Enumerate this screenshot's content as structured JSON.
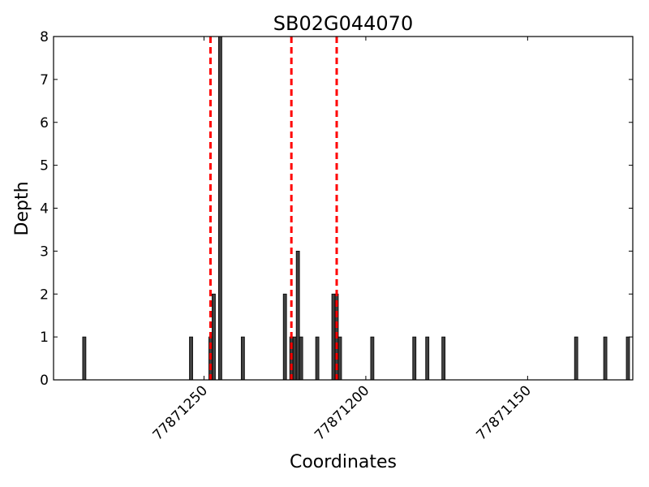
{
  "chart_data": {
    "type": "bar",
    "title": "SB02G044070",
    "xlabel": "Coordinates",
    "ylabel": "Depth",
    "x_reversed": true,
    "xlim": [
      77871296.5,
      77871117.5
    ],
    "ylim": [
      0,
      8
    ],
    "yticks": [
      0,
      1,
      2,
      3,
      4,
      5,
      6,
      7,
      8
    ],
    "xticks": [
      77871250,
      77871200,
      77871150
    ],
    "xtick_labels": [
      "77871250",
      "77871200",
      "77871150"
    ],
    "bar_width": 1,
    "bar_color": "#404040",
    "reference_lines": [
      77871248,
      77871223,
      77871209
    ],
    "reference_line_color": "#ff0000",
    "grid": false,
    "bars": [
      {
        "x": 77871287,
        "y": 1
      },
      {
        "x": 77871254,
        "y": 1
      },
      {
        "x": 77871248,
        "y": 1
      },
      {
        "x": 77871247,
        "y": 2
      },
      {
        "x": 77871245,
        "y": 8
      },
      {
        "x": 77871238,
        "y": 1
      },
      {
        "x": 77871225,
        "y": 2
      },
      {
        "x": 77871223,
        "y": 1
      },
      {
        "x": 77871222,
        "y": 1
      },
      {
        "x": 77871221,
        "y": 3
      },
      {
        "x": 77871220,
        "y": 1
      },
      {
        "x": 77871215,
        "y": 1
      },
      {
        "x": 77871210,
        "y": 2
      },
      {
        "x": 77871209,
        "y": 2
      },
      {
        "x": 77871208,
        "y": 1
      },
      {
        "x": 77871198,
        "y": 1
      },
      {
        "x": 77871185,
        "y": 1
      },
      {
        "x": 77871181,
        "y": 1
      },
      {
        "x": 77871176,
        "y": 1
      },
      {
        "x": 77871135,
        "y": 1
      },
      {
        "x": 77871126,
        "y": 1
      },
      {
        "x": 77871119,
        "y": 1
      }
    ]
  }
}
